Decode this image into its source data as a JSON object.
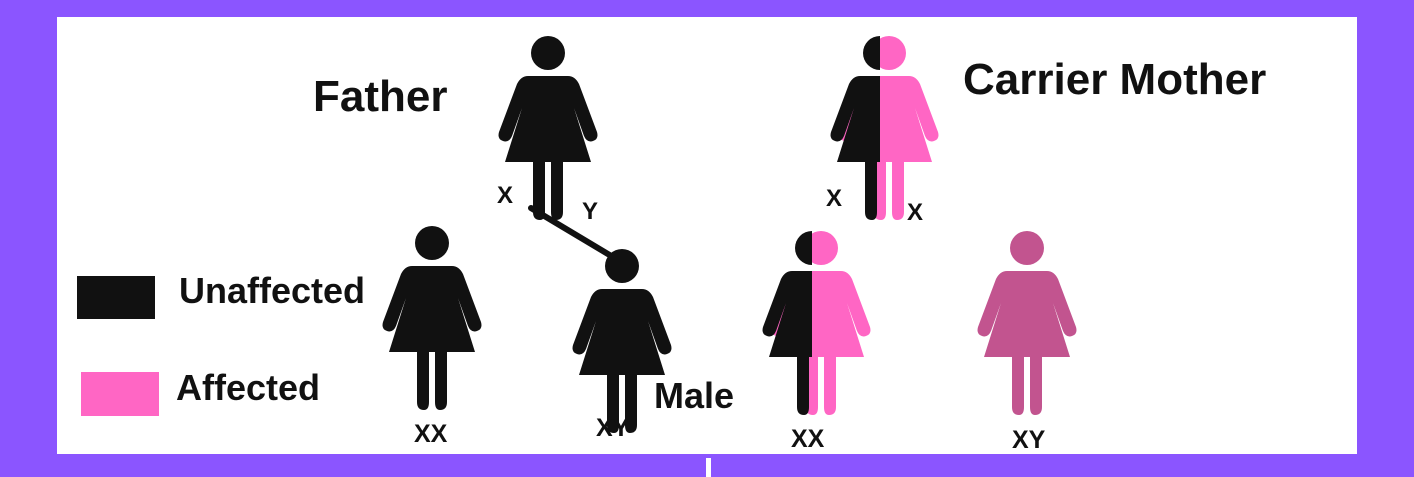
{
  "colors": {
    "frame": "#8B55FF",
    "unaffected": "#111111",
    "affected": "#FF66C4",
    "affected_dark": "#C2548F",
    "background": "#FFFFFF"
  },
  "labels": {
    "father": "Father",
    "carrier_mother": "Carrier Mother",
    "father_allele_left": "X",
    "father_allele_right": "Y",
    "mother_allele_left": "X",
    "mother_allele_right": "X",
    "child1_genotype": "XX",
    "child2_genotype": "XY",
    "child2_sex": "Male",
    "child3_genotype": "XX",
    "child4_genotype": "XY"
  },
  "legend": [
    {
      "label": "Unaffected",
      "color": "#111111"
    },
    {
      "label": "Affected",
      "color": "#FF66C4"
    }
  ],
  "icons": {
    "father": "person-icon-unaffected",
    "mother": "person-icon-carrier",
    "child1": "person-icon-unaffected",
    "child2": "person-icon-unaffected",
    "child3": "person-icon-carrier",
    "child4": "person-icon-affected"
  }
}
